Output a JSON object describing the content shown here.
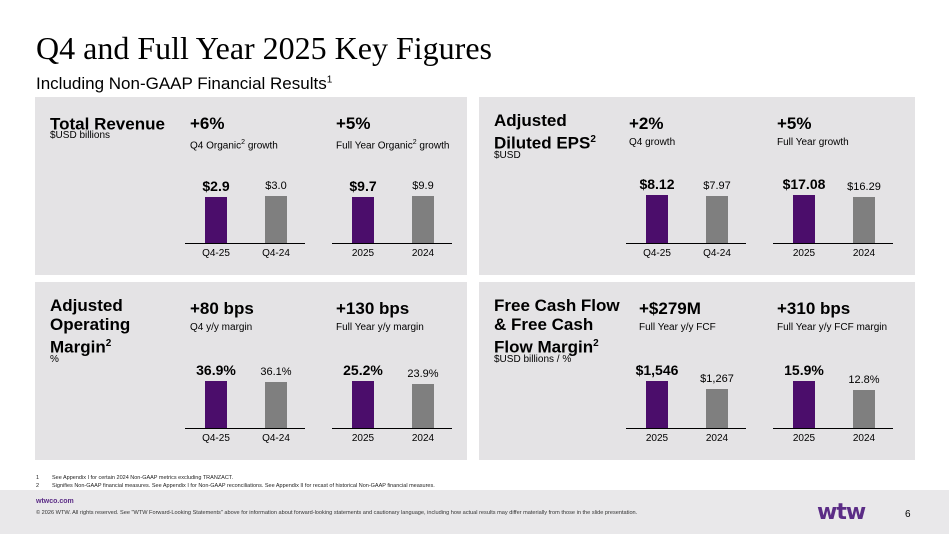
{
  "title": "Q4 and Full Year 2025 Key Figures",
  "subtitle": "Including Non-GAAP Financial Results",
  "subtitle_sup": "1",
  "colors": {
    "accent": "#4b0d6b",
    "gray": "#7f7f7f",
    "panel": "#e4e3e5",
    "brand": "#5b2c86"
  },
  "panels": [
    {
      "title": "Total Revenue",
      "title_sup": "",
      "sub": "$USD billions",
      "metrics": [
        {
          "big": "+6%",
          "small_pre": "Q4 Organic",
          "small_sup": "2",
          "small_post": " growth"
        },
        {
          "big": "+5%",
          "small_pre": "Full Year Organic",
          "small_sup": "2",
          "small_post": " growth"
        }
      ]
    },
    {
      "title": "Adjusted\nDiluted EPS",
      "title_sup": "2",
      "sub": "$USD",
      "metrics": [
        {
          "big": "+2%",
          "small_pre": "Q4 growth",
          "small_sup": "",
          "small_post": ""
        },
        {
          "big": "+5%",
          "small_pre": "Full Year growth",
          "small_sup": "",
          "small_post": ""
        }
      ]
    },
    {
      "title": "Adjusted\nOperating\nMargin",
      "title_sup": "2",
      "sub": "%",
      "metrics": [
        {
          "big": "+80 bps",
          "small_pre": "Q4 y/y margin",
          "small_sup": "",
          "small_post": ""
        },
        {
          "big": "+130 bps",
          "small_pre": "Full Year y/y margin",
          "small_sup": "",
          "small_post": ""
        }
      ]
    },
    {
      "title": "Free Cash Flow\n& Free Cash\nFlow Margin",
      "title_sup": "2",
      "sub": "$USD billions / %",
      "metrics": [
        {
          "big": "+$279M",
          "small_pre": "Full Year y/y FCF",
          "small_sup": "",
          "small_post": ""
        },
        {
          "big": "+310 bps",
          "small_pre": "Full Year y/y FCF margin",
          "small_sup": "",
          "small_post": ""
        }
      ]
    }
  ],
  "chart_data": [
    {
      "type": "bar",
      "categories": [
        "Q4-25",
        "Q4-24"
      ],
      "values": [
        2.9,
        3.0
      ],
      "labels": [
        "$2.9",
        "$3.0"
      ],
      "ylim": [
        0,
        4.2
      ]
    },
    {
      "type": "bar",
      "categories": [
        "2025",
        "2024"
      ],
      "values": [
        9.7,
        9.9
      ],
      "labels": [
        "$9.7",
        "$9.9"
      ],
      "ylim": [
        0,
        14.0
      ]
    },
    {
      "type": "bar",
      "categories": [
        "Q4-25",
        "Q4-24"
      ],
      "values": [
        8.12,
        7.97
      ],
      "labels": [
        "$8.12",
        "$7.97"
      ],
      "ylim": [
        0,
        11.2
      ]
    },
    {
      "type": "bar",
      "categories": [
        "2025",
        "2024"
      ],
      "values": [
        17.08,
        16.29
      ],
      "labels": [
        "$17.08",
        "$16.29"
      ],
      "ylim": [
        0,
        23.5
      ]
    },
    {
      "type": "bar",
      "categories": [
        "Q4-25",
        "Q4-24"
      ],
      "values": [
        36.9,
        36.1
      ],
      "labels": [
        "36.9%",
        "36.1%"
      ],
      "ylim": [
        0,
        52
      ]
    },
    {
      "type": "bar",
      "categories": [
        "2025",
        "2024"
      ],
      "values": [
        25.2,
        23.9
      ],
      "labels": [
        "25.2%",
        "23.9%"
      ],
      "ylim": [
        0,
        35.5
      ]
    },
    {
      "type": "bar",
      "categories": [
        "2025",
        "2024"
      ],
      "values": [
        1546,
        1267
      ],
      "labels": [
        "$1,546",
        "$1,267"
      ],
      "ylim": [
        0,
        2150
      ]
    },
    {
      "type": "bar",
      "categories": [
        "2025",
        "2024"
      ],
      "values": [
        15.9,
        12.8
      ],
      "labels": [
        "15.9%",
        "12.8%"
      ],
      "ylim": [
        0,
        22.5
      ]
    }
  ],
  "footnotes": [
    {
      "num": "1",
      "text": "See Appendix I for certain 2024 Non-GAAP metrics excluding TRANZACT."
    },
    {
      "num": "2",
      "text": "Signifies Non-GAAP financial measures. See Appendix I for Non-GAAP reconciliations. See Appendix II for recast of historical Non-GAAP financial measures."
    }
  ],
  "footer": {
    "site": "wtwco.com",
    "legal": "© 2026 WTW. All rights reserved. See \"WTW Forward-Looking Statements\" above for information about forward-looking statements and cautionary language, including how actual results may differ materially from those in the slide presentation.",
    "logo": "wtw",
    "page": "6"
  }
}
